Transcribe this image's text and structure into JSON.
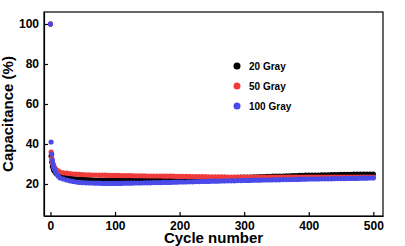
{
  "chart_data": {
    "type": "scatter",
    "x_label": "Cycle number",
    "y_label": "Capacitance (%)",
    "xlim": [
      -10,
      515
    ],
    "ylim": [
      4,
      106
    ],
    "xticks": [
      0,
      100,
      200,
      300,
      400,
      500
    ],
    "yticks": [
      20,
      40,
      60,
      80,
      100
    ],
    "grid": false,
    "legend": "upper right",
    "marker": "circle",
    "x": [
      0,
      1,
      2,
      3,
      4,
      5,
      6,
      8,
      10,
      12,
      15,
      20,
      25,
      30,
      35,
      40,
      45,
      50,
      55,
      60,
      65,
      70,
      75,
      80,
      85,
      90,
      95,
      100,
      105,
      110,
      115,
      120,
      125,
      130,
      135,
      140,
      145,
      150,
      155,
      160,
      165,
      170,
      175,
      180,
      185,
      190,
      195,
      200,
      205,
      210,
      215,
      220,
      225,
      230,
      235,
      240,
      245,
      250,
      255,
      260,
      265,
      270,
      275,
      280,
      285,
      290,
      295,
      300,
      305,
      310,
      315,
      320,
      325,
      330,
      335,
      340,
      345,
      350,
      355,
      360,
      365,
      370,
      375,
      380,
      385,
      390,
      395,
      400,
      405,
      410,
      415,
      420,
      425,
      430,
      435,
      440,
      445,
      450,
      455,
      460,
      465,
      470,
      475,
      480,
      485,
      490,
      495,
      500
    ],
    "series": [
      {
        "name": "20 Gray",
        "color": "#000000",
        "values": [
          100,
          34,
          31,
          29,
          28,
          27,
          26.5,
          25.5,
          25,
          24.5,
          24,
          23.5,
          23.2,
          23,
          22.8,
          22.6,
          22.5,
          22.4,
          22.3,
          22.2,
          22.1,
          22,
          22,
          22,
          22,
          22,
          22,
          22,
          22,
          22,
          22,
          22,
          22,
          22,
          22,
          22,
          22,
          22,
          22.1,
          22.1,
          22.1,
          22.1,
          22.1,
          22.1,
          22.1,
          22.1,
          22.1,
          22.1,
          22.2,
          22.3,
          22.3,
          22.4,
          22.5,
          22.6,
          22.6,
          22.7,
          22.8,
          22.8,
          22.9,
          23,
          23,
          23.1,
          23.2,
          23.2,
          23.3,
          23.3,
          23.4,
          23.4,
          23.5,
          23.5,
          23.6,
          23.6,
          23.7,
          23.7,
          23.8,
          23.8,
          23.9,
          23.9,
          24,
          24,
          24.1,
          24.1,
          24.2,
          24.2,
          24.3,
          24.3,
          24.4,
          24.4,
          24.5,
          24.5,
          24.5,
          24.6,
          24.6,
          24.6,
          24.7,
          24.7,
          24.7,
          24.8,
          24.8,
          24.8,
          24.8,
          24.9,
          24.9,
          24.9,
          24.9,
          25,
          25,
          25
        ]
      },
      {
        "name": "50 Gray",
        "color": "#ef3b3b",
        "values": [
          100,
          36,
          33,
          31,
          30,
          29,
          28.5,
          27.5,
          27,
          26.5,
          26,
          25.6,
          25.4,
          25.2,
          25,
          24.9,
          24.8,
          24.7,
          24.6,
          24.6,
          24.5,
          24.5,
          24.4,
          24.4,
          24.4,
          24.3,
          24.3,
          24.3,
          24.3,
          24.2,
          24.2,
          24.2,
          24.2,
          24.1,
          24.1,
          24.1,
          24.1,
          24,
          24,
          24,
          24,
          24,
          23.9,
          23.9,
          23.9,
          23.9,
          23.8,
          23.8,
          23.8,
          23.8,
          23.8,
          23.7,
          23.7,
          23.7,
          23.7,
          23.7,
          23.6,
          23.6,
          23.6,
          23.6,
          23.6,
          23.6,
          23.5,
          23.5,
          23.5,
          23.5,
          23.5,
          23.5,
          23.5,
          23.5,
          23.5,
          23.5,
          23.5,
          23.4,
          23.4,
          23.4,
          23.4,
          23.4,
          23.4,
          23.4,
          23.4,
          23.4,
          23.4,
          23.4,
          23.4,
          23.4,
          23.4,
          23.4,
          23.4,
          23.4,
          23.4,
          23.4,
          23.4,
          23.4,
          23.4,
          23.4,
          23.4,
          23.4,
          23.5,
          23.5,
          23.5,
          23.5,
          23.5,
          23.5,
          23.5,
          23.5,
          23.5,
          23.5
        ]
      },
      {
        "name": "100 Gray",
        "color": "#4a4ae8",
        "values": [
          100,
          41,
          35,
          32,
          30,
          28.5,
          27.5,
          26,
          25,
          24,
          23,
          22.5,
          22,
          21.6,
          21.3,
          21,
          20.8,
          20.7,
          20.6,
          20.5,
          20.5,
          20.4,
          20.4,
          20.3,
          20.3,
          20.3,
          20.3,
          20.3,
          20.3,
          20.3,
          20.4,
          20.4,
          20.4,
          20.5,
          20.5,
          20.5,
          20.6,
          20.6,
          20.6,
          20.7,
          20.7,
          20.7,
          20.8,
          20.8,
          20.8,
          20.9,
          20.9,
          21,
          21,
          21,
          21.1,
          21.1,
          21.2,
          21.2,
          21.3,
          21.3,
          21.3,
          21.4,
          21.4,
          21.4,
          21.5,
          21.5,
          21.6,
          21.6,
          21.6,
          21.7,
          21.7,
          21.8,
          21.8,
          21.8,
          21.9,
          21.9,
          21.9,
          22,
          22,
          22,
          22.1,
          22.1,
          22.1,
          22.2,
          22.2,
          22.2,
          22.3,
          22.3,
          22.3,
          22.4,
          22.4,
          22.5,
          22.5,
          22.5,
          22.5,
          22.6,
          22.6,
          22.6,
          22.6,
          22.7,
          22.7,
          22.7,
          22.7,
          22.8,
          22.8,
          22.8,
          22.8,
          22.9,
          22.9,
          22.9,
          23,
          23
        ]
      }
    ]
  }
}
